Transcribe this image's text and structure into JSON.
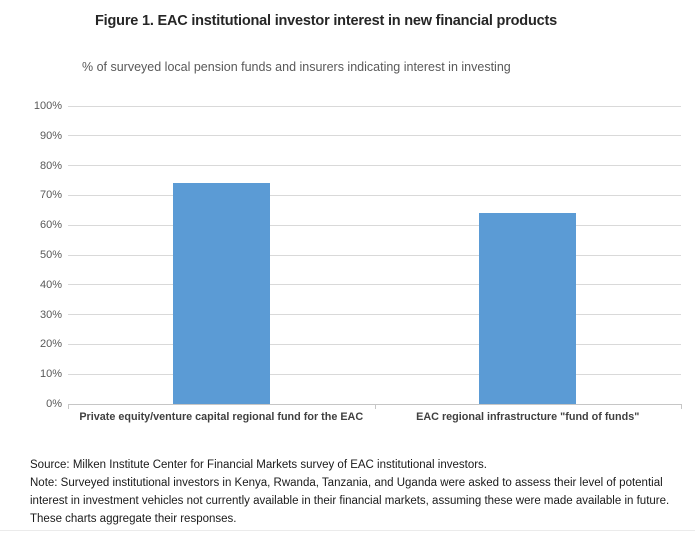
{
  "figure": {
    "title": "Figure 1. EAC institutional investor interest in new financial products",
    "subtitle": "% of surveyed local pension funds and insurers indicating interest in investing",
    "source": "Source: Milken Institute Center for Financial Markets survey of EAC institutional investors.",
    "note": "Note: Surveyed institutional investors in Kenya, Rwanda, Tanzania, and Uganda were asked to assess their level of potential interest in investment vehicles not currently available in their financial markets, assuming these were made available in future. These charts aggregate their responses."
  },
  "colors": {
    "bar": "#5B9BD5",
    "gridline": "#D9D9D9",
    "axis_line": "#C6C6C6",
    "axis_text": "#595959",
    "title_text": "#262626",
    "category_text": "#404040"
  },
  "chart_data": {
    "type": "bar",
    "categories": [
      "Private equity/venture capital regional fund for the EAC",
      "EAC regional infrastructure \"fund of funds\""
    ],
    "values": [
      74,
      64
    ],
    "title": "Figure 1. EAC institutional investor interest in new financial products",
    "subtitle": "% of surveyed local pension funds and insurers indicating interest in investing",
    "xlabel": "",
    "ylabel": "",
    "ylim": [
      0,
      100
    ],
    "ytick_step": 10,
    "ytick_format": "percent",
    "grid": true,
    "legend": false
  }
}
